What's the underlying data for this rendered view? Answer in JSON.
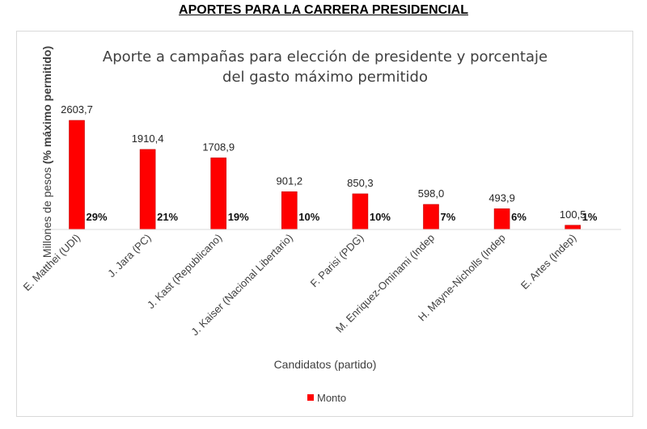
{
  "page_title": "APORTES PARA LA CARRERA PRESIDENCIAL",
  "colors": {
    "bar": "#ff0000",
    "bar_edge": "#c00000",
    "axis": "#d9d9d9"
  },
  "chart_data": {
    "type": "bar",
    "title_line1": "Aporte a campañas para elección de presidente y porcentaje",
    "title_line2": "del gasto máximo permitido",
    "xlabel": "Candidatos (partido)",
    "ylabel_normal": "Millones de pesos ",
    "ylabel_bold": "(% máximo permitido)",
    "legend": "Monto",
    "categories": [
      "E. Matthei (UDI)",
      "J. Jara (PC)",
      "J. Kast (Republicano)",
      "J. Kaiser (Nacional Libertario)",
      "F. Parisi (PDG)",
      "M. Enriquez-Ominami (Indep",
      "H. Mayne-Nicholls (Indep",
      "E. Artes (Indep)"
    ],
    "values": [
      2603.7,
      1910.4,
      1708.9,
      901.2,
      850.3,
      598.0,
      493.9,
      100.5
    ],
    "value_labels": [
      "2603,7",
      "1910,4",
      "1708,9",
      "901,2",
      "850,3",
      "598,0",
      "493,9",
      "100,5"
    ],
    "percent_labels": [
      "29%",
      "21%",
      "19%",
      "10%",
      "10%",
      "7%",
      "6%",
      "1%"
    ],
    "ylim": [
      0,
      2800
    ]
  }
}
